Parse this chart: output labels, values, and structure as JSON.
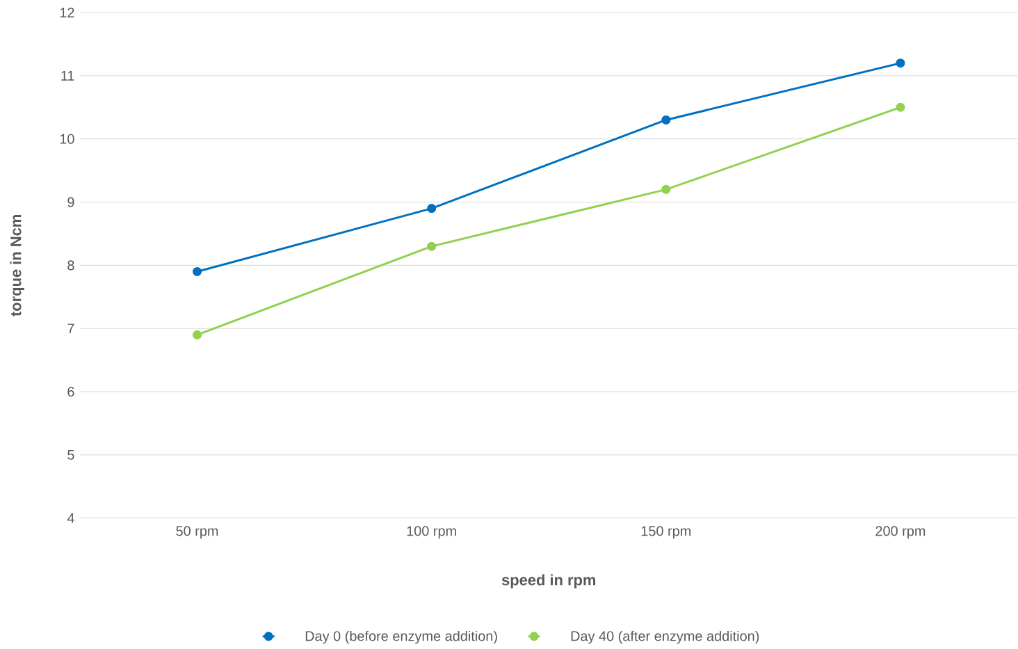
{
  "chart_data": {
    "type": "line",
    "xlabel": "speed in rpm",
    "ylabel": "torque in Ncm",
    "categories": [
      "50 rpm",
      "100 rpm",
      "150 rpm",
      "200 rpm"
    ],
    "series": [
      {
        "name": "Day 0 (before enzyme addition)",
        "color": "#0070c0",
        "values": [
          7.9,
          8.9,
          10.3,
          11.2
        ]
      },
      {
        "name": "Day 40 (after enzyme addition)",
        "color": "#92d050",
        "values": [
          6.9,
          8.3,
          9.2,
          10.5
        ]
      }
    ],
    "ylim": [
      4,
      12
    ],
    "yticks": [
      4,
      5,
      6,
      7,
      8,
      9,
      10,
      11,
      12
    ],
    "grid": "y",
    "legend": "bottom",
    "marker": "circle",
    "line_style": "solid"
  }
}
